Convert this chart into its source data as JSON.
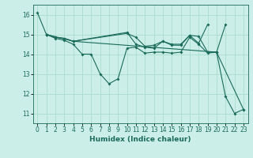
{
  "title": "",
  "xlabel": "Humidex (Indice chaleur)",
  "background_color": "#cceee8",
  "grid_color": "#aaddcc",
  "line_color": "#1a6b5a",
  "xlim": [
    -0.5,
    23.5
  ],
  "ylim": [
    10.5,
    16.5
  ],
  "yticks": [
    11,
    12,
    13,
    14,
    15,
    16
  ],
  "xticks": [
    0,
    1,
    2,
    3,
    4,
    5,
    6,
    7,
    8,
    9,
    10,
    11,
    12,
    13,
    14,
    15,
    16,
    17,
    18,
    19,
    20,
    21,
    22,
    23
  ],
  "line1_x": [
    0,
    1,
    2,
    3,
    4,
    5,
    6,
    7,
    8,
    9,
    10,
    11,
    12,
    13,
    14,
    15,
    16,
    17,
    18,
    19,
    20,
    21,
    22,
    23
  ],
  "line1_y": [
    16.1,
    15.0,
    14.8,
    14.7,
    14.5,
    14.0,
    14.0,
    13.0,
    12.5,
    12.75,
    14.3,
    14.35,
    14.05,
    14.1,
    14.1,
    14.05,
    14.1,
    14.85,
    14.5,
    14.05,
    14.1,
    11.85,
    11.0,
    11.2
  ],
  "line2_x": [
    1,
    2,
    3,
    4,
    10,
    11,
    12,
    13,
    14,
    15,
    16,
    17,
    18,
    19,
    20,
    21
  ],
  "line2_y": [
    15.0,
    14.85,
    14.8,
    14.65,
    15.05,
    14.85,
    14.4,
    14.45,
    14.65,
    14.5,
    14.5,
    14.95,
    14.9,
    14.1,
    14.1,
    15.5
  ],
  "line3_x": [
    1,
    2,
    3,
    4,
    10,
    11,
    12,
    13,
    14,
    15,
    16,
    17,
    18,
    19
  ],
  "line3_y": [
    15.0,
    14.85,
    14.8,
    14.65,
    15.1,
    14.5,
    14.35,
    14.3,
    14.65,
    14.45,
    14.45,
    14.95,
    14.55,
    15.5
  ],
  "line4_x": [
    1,
    4,
    20,
    23
  ],
  "line4_y": [
    15.0,
    14.65,
    14.1,
    11.2
  ]
}
